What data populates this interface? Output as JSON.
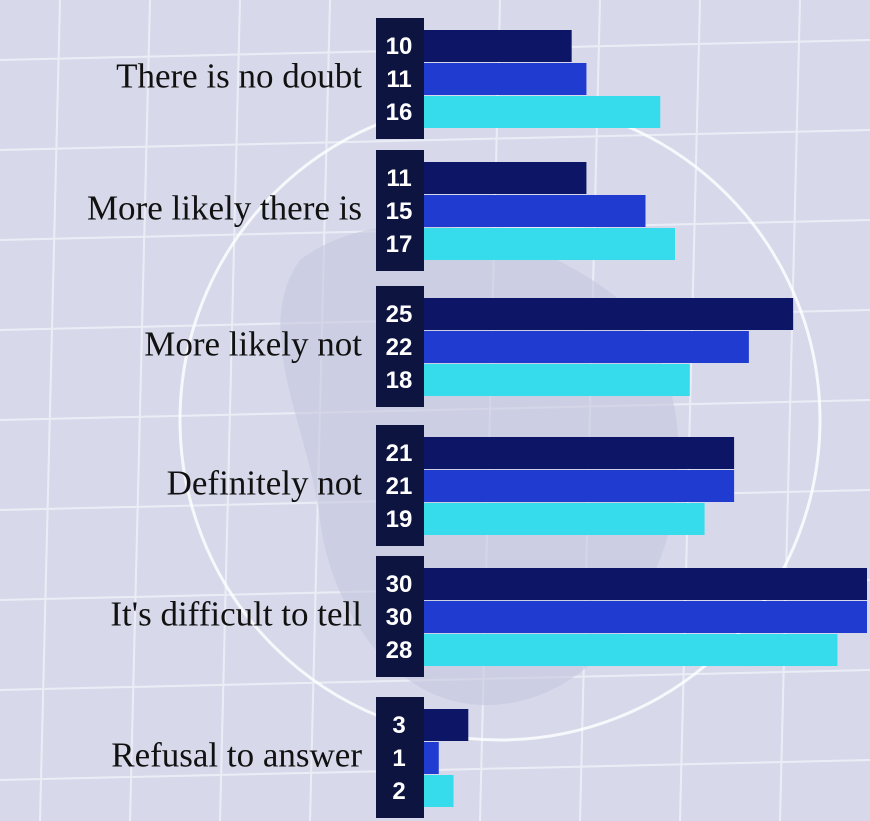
{
  "chart_data": {
    "type": "hbar",
    "categories": [
      "There is no doubt",
      "More likely there is",
      "More likely not",
      "Definitely not",
      "It's difficult to tell",
      "Refusal to answer"
    ],
    "series": [
      {
        "color": "#0d1566",
        "values": [
          10,
          11,
          25,
          21,
          30,
          3
        ]
      },
      {
        "color": "#1f3bd0",
        "values": [
          11,
          15,
          22,
          21,
          30,
          1
        ]
      },
      {
        "color": "#36dcec",
        "values": [
          16,
          17,
          18,
          19,
          28,
          2
        ]
      }
    ]
  }
}
